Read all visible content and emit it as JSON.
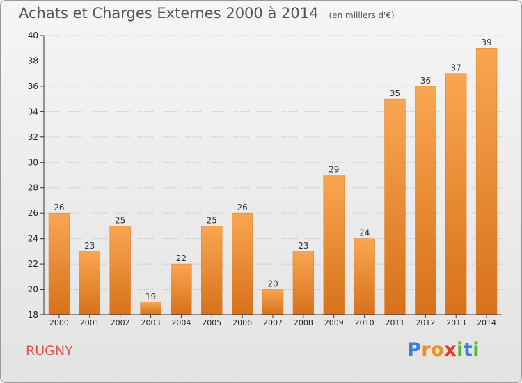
{
  "title": "Achats et Charges Externes 2000 à 2014",
  "unit": "(en milliers d'€)",
  "place": "RUGNY",
  "logo": {
    "letters": [
      "P",
      "r",
      "o",
      "x",
      "i",
      "t",
      "i"
    ],
    "colors": [
      "#3a7fd5",
      "#f28e1e",
      "#f28e1e",
      "#e8352b",
      "#59b52a",
      "#3a7fd5",
      "#59b52a"
    ]
  },
  "colors": {
    "bar_top": "#f9a650",
    "bar_bottom": "#d7711c",
    "bar_edge": "#e07b25",
    "grid": "#bfbfbf"
  },
  "chart_data": {
    "type": "bar",
    "title": "Achats et Charges Externes 2000 à 2014",
    "subtitle": "(en milliers d'€)",
    "categories": [
      "2000",
      "2001",
      "2002",
      "2003",
      "2004",
      "2005",
      "2006",
      "2007",
      "2008",
      "2009",
      "2010",
      "2011",
      "2012",
      "2013",
      "2014"
    ],
    "values": [
      26,
      23,
      25,
      19,
      22,
      25,
      26,
      20,
      23,
      29,
      24,
      35,
      36,
      37,
      39
    ],
    "ylim": [
      18,
      40
    ],
    "yticks": [
      18,
      20,
      22,
      24,
      26,
      28,
      30,
      32,
      34,
      36,
      38,
      40
    ],
    "grid": true,
    "data_labels": true
  }
}
